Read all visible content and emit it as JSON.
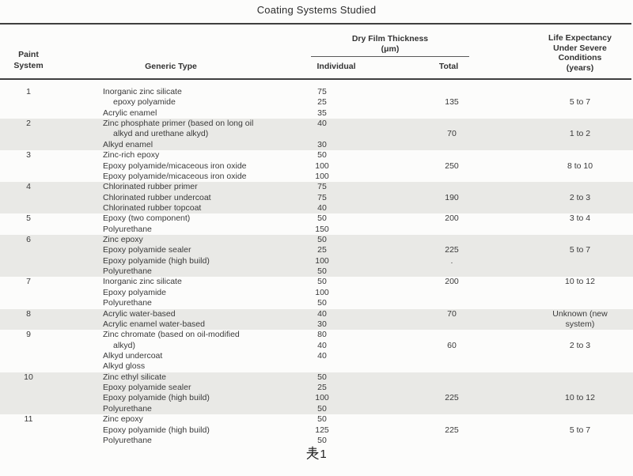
{
  "title": "Coating Systems Studied",
  "header": {
    "paint_system_lines": [
      "Paint",
      "System"
    ],
    "generic_type": "Generic Type",
    "dry_film_thickness": "Dry Film Thickness",
    "dft_unit": "(μm)",
    "individual": "Individual",
    "total": "Total",
    "life_expectancy_lines": [
      "Life Expectancy",
      "Under Severe",
      "Conditions",
      "(years)"
    ]
  },
  "caption": {
    "text": "表1",
    "number": "1"
  },
  "rows": [
    {
      "system": "1",
      "type": "Inorganic zinc silicate",
      "indent": false,
      "individual": "75",
      "total": "",
      "life": "",
      "shaded": false
    },
    {
      "system": "",
      "type": "epoxy polyamide",
      "indent": true,
      "individual": "25",
      "total": "135",
      "life": "5 to 7",
      "shaded": false
    },
    {
      "system": "",
      "type": "Acrylic enamel",
      "indent": false,
      "individual": "35",
      "total": "",
      "life": "",
      "shaded": false
    },
    {
      "system": "2",
      "type": "Zinc phosphate primer (based on long oil",
      "indent": false,
      "individual": "40",
      "total": "",
      "life": "",
      "shaded": true
    },
    {
      "system": "",
      "type": "alkyd and urethane alkyd)",
      "indent": true,
      "individual": "",
      "total": "70",
      "life": "1 to 2",
      "shaded": true
    },
    {
      "system": "",
      "type": "Alkyd enamel",
      "indent": false,
      "individual": "30",
      "total": "",
      "life": "",
      "shaded": true
    },
    {
      "system": "3",
      "type": "Zinc-rich epoxy",
      "indent": false,
      "individual": "50",
      "total": "",
      "life": "",
      "shaded": false
    },
    {
      "system": "",
      "type": "Epoxy polyamide/micaceous iron oxide",
      "indent": false,
      "individual": "100",
      "total": "250",
      "life": "8 to 10",
      "shaded": false
    },
    {
      "system": "",
      "type": "Epoxy polyamide/micaceous iron oxide",
      "indent": false,
      "individual": "100",
      "total": "",
      "life": "",
      "shaded": false
    },
    {
      "system": "4",
      "type": "Chlorinated rubber primer",
      "indent": false,
      "individual": "75",
      "total": "",
      "life": "",
      "shaded": true
    },
    {
      "system": "",
      "type": "Chlorinated rubber undercoat",
      "indent": false,
      "individual": "75",
      "total": "190",
      "life": "2 to 3",
      "shaded": true
    },
    {
      "system": "",
      "type": "Chlorinated rubber topcoat",
      "indent": false,
      "individual": "40",
      "total": "",
      "life": "",
      "shaded": true
    },
    {
      "system": "5",
      "type": "Epoxy (two component)",
      "indent": false,
      "individual": "50",
      "total": "200",
      "life": "3 to 4",
      "shaded": false
    },
    {
      "system": "",
      "type": "Polyurethane",
      "indent": false,
      "individual": "150",
      "total": "",
      "life": "",
      "shaded": false
    },
    {
      "system": "6",
      "type": "Zinc epoxy",
      "indent": false,
      "individual": "50",
      "total": "",
      "life": "",
      "shaded": true
    },
    {
      "system": "",
      "type": "Epoxy polyamide sealer",
      "indent": false,
      "individual": "25",
      "total": "225",
      "life": "5 to 7",
      "shaded": true
    },
    {
      "system": "",
      "type": "Epoxy polyamide (high build)",
      "indent": false,
      "individual": "100",
      "total": ".",
      "life": "",
      "shaded": true
    },
    {
      "system": "",
      "type": "Polyurethane",
      "indent": false,
      "individual": "50",
      "total": "",
      "life": "",
      "shaded": true
    },
    {
      "system": "7",
      "type": "Inorganic zinc silicate",
      "indent": false,
      "individual": "50",
      "total": "200",
      "life": "10 to 12",
      "shaded": false
    },
    {
      "system": "",
      "type": "Epoxy polyamide",
      "indent": false,
      "individual": "100",
      "total": "",
      "life": "",
      "shaded": false
    },
    {
      "system": "",
      "type": "Polyurethane",
      "indent": false,
      "individual": "50",
      "total": "",
      "life": "",
      "shaded": false
    },
    {
      "system": "8",
      "type": "Acrylic water-based",
      "indent": false,
      "individual": "40",
      "total": "70",
      "life": "Unknown (new",
      "shaded": true
    },
    {
      "system": "",
      "type": "Acrylic enamel water-based",
      "indent": false,
      "individual": "30",
      "total": "",
      "life": "system)",
      "shaded": true
    },
    {
      "system": "9",
      "type": "Zinc chromate (based on oil-modified",
      "indent": false,
      "individual": "80",
      "total": "",
      "life": "",
      "shaded": false
    },
    {
      "system": "",
      "type": "alkyd)",
      "indent": true,
      "individual": "40",
      "total": "60",
      "life": "2 to 3",
      "shaded": false
    },
    {
      "system": "",
      "type": "Alkyd undercoat",
      "indent": false,
      "individual": "40",
      "total": "",
      "life": "",
      "shaded": false
    },
    {
      "system": "",
      "type": "Alkyd gloss",
      "indent": false,
      "individual": "",
      "total": "",
      "life": "",
      "shaded": false
    },
    {
      "system": "10",
      "type": "Zinc ethyl silicate",
      "indent": false,
      "individual": "50",
      "total": "",
      "life": "",
      "shaded": true
    },
    {
      "system": "",
      "type": "Epoxy polyamide sealer",
      "indent": false,
      "individual": "25",
      "total": "",
      "life": "",
      "shaded": true
    },
    {
      "system": "",
      "type": "Epoxy polyamide (high build)",
      "indent": false,
      "individual": "100",
      "total": "225",
      "life": "10 to 12",
      "shaded": true
    },
    {
      "system": "",
      "type": "Polyurethane",
      "indent": false,
      "individual": "50",
      "total": "",
      "life": "",
      "shaded": true
    },
    {
      "system": "11",
      "type": "Zinc epoxy",
      "indent": false,
      "individual": "50",
      "total": "",
      "life": "",
      "shaded": false
    },
    {
      "system": "",
      "type": "Epoxy polyamide (high build)",
      "indent": false,
      "individual": "125",
      "total": "225",
      "life": "5 to 7",
      "shaded": false
    },
    {
      "system": "",
      "type": "Polyurethane",
      "indent": false,
      "individual": "50",
      "total": "",
      "life": "",
      "shaded": false
    }
  ]
}
